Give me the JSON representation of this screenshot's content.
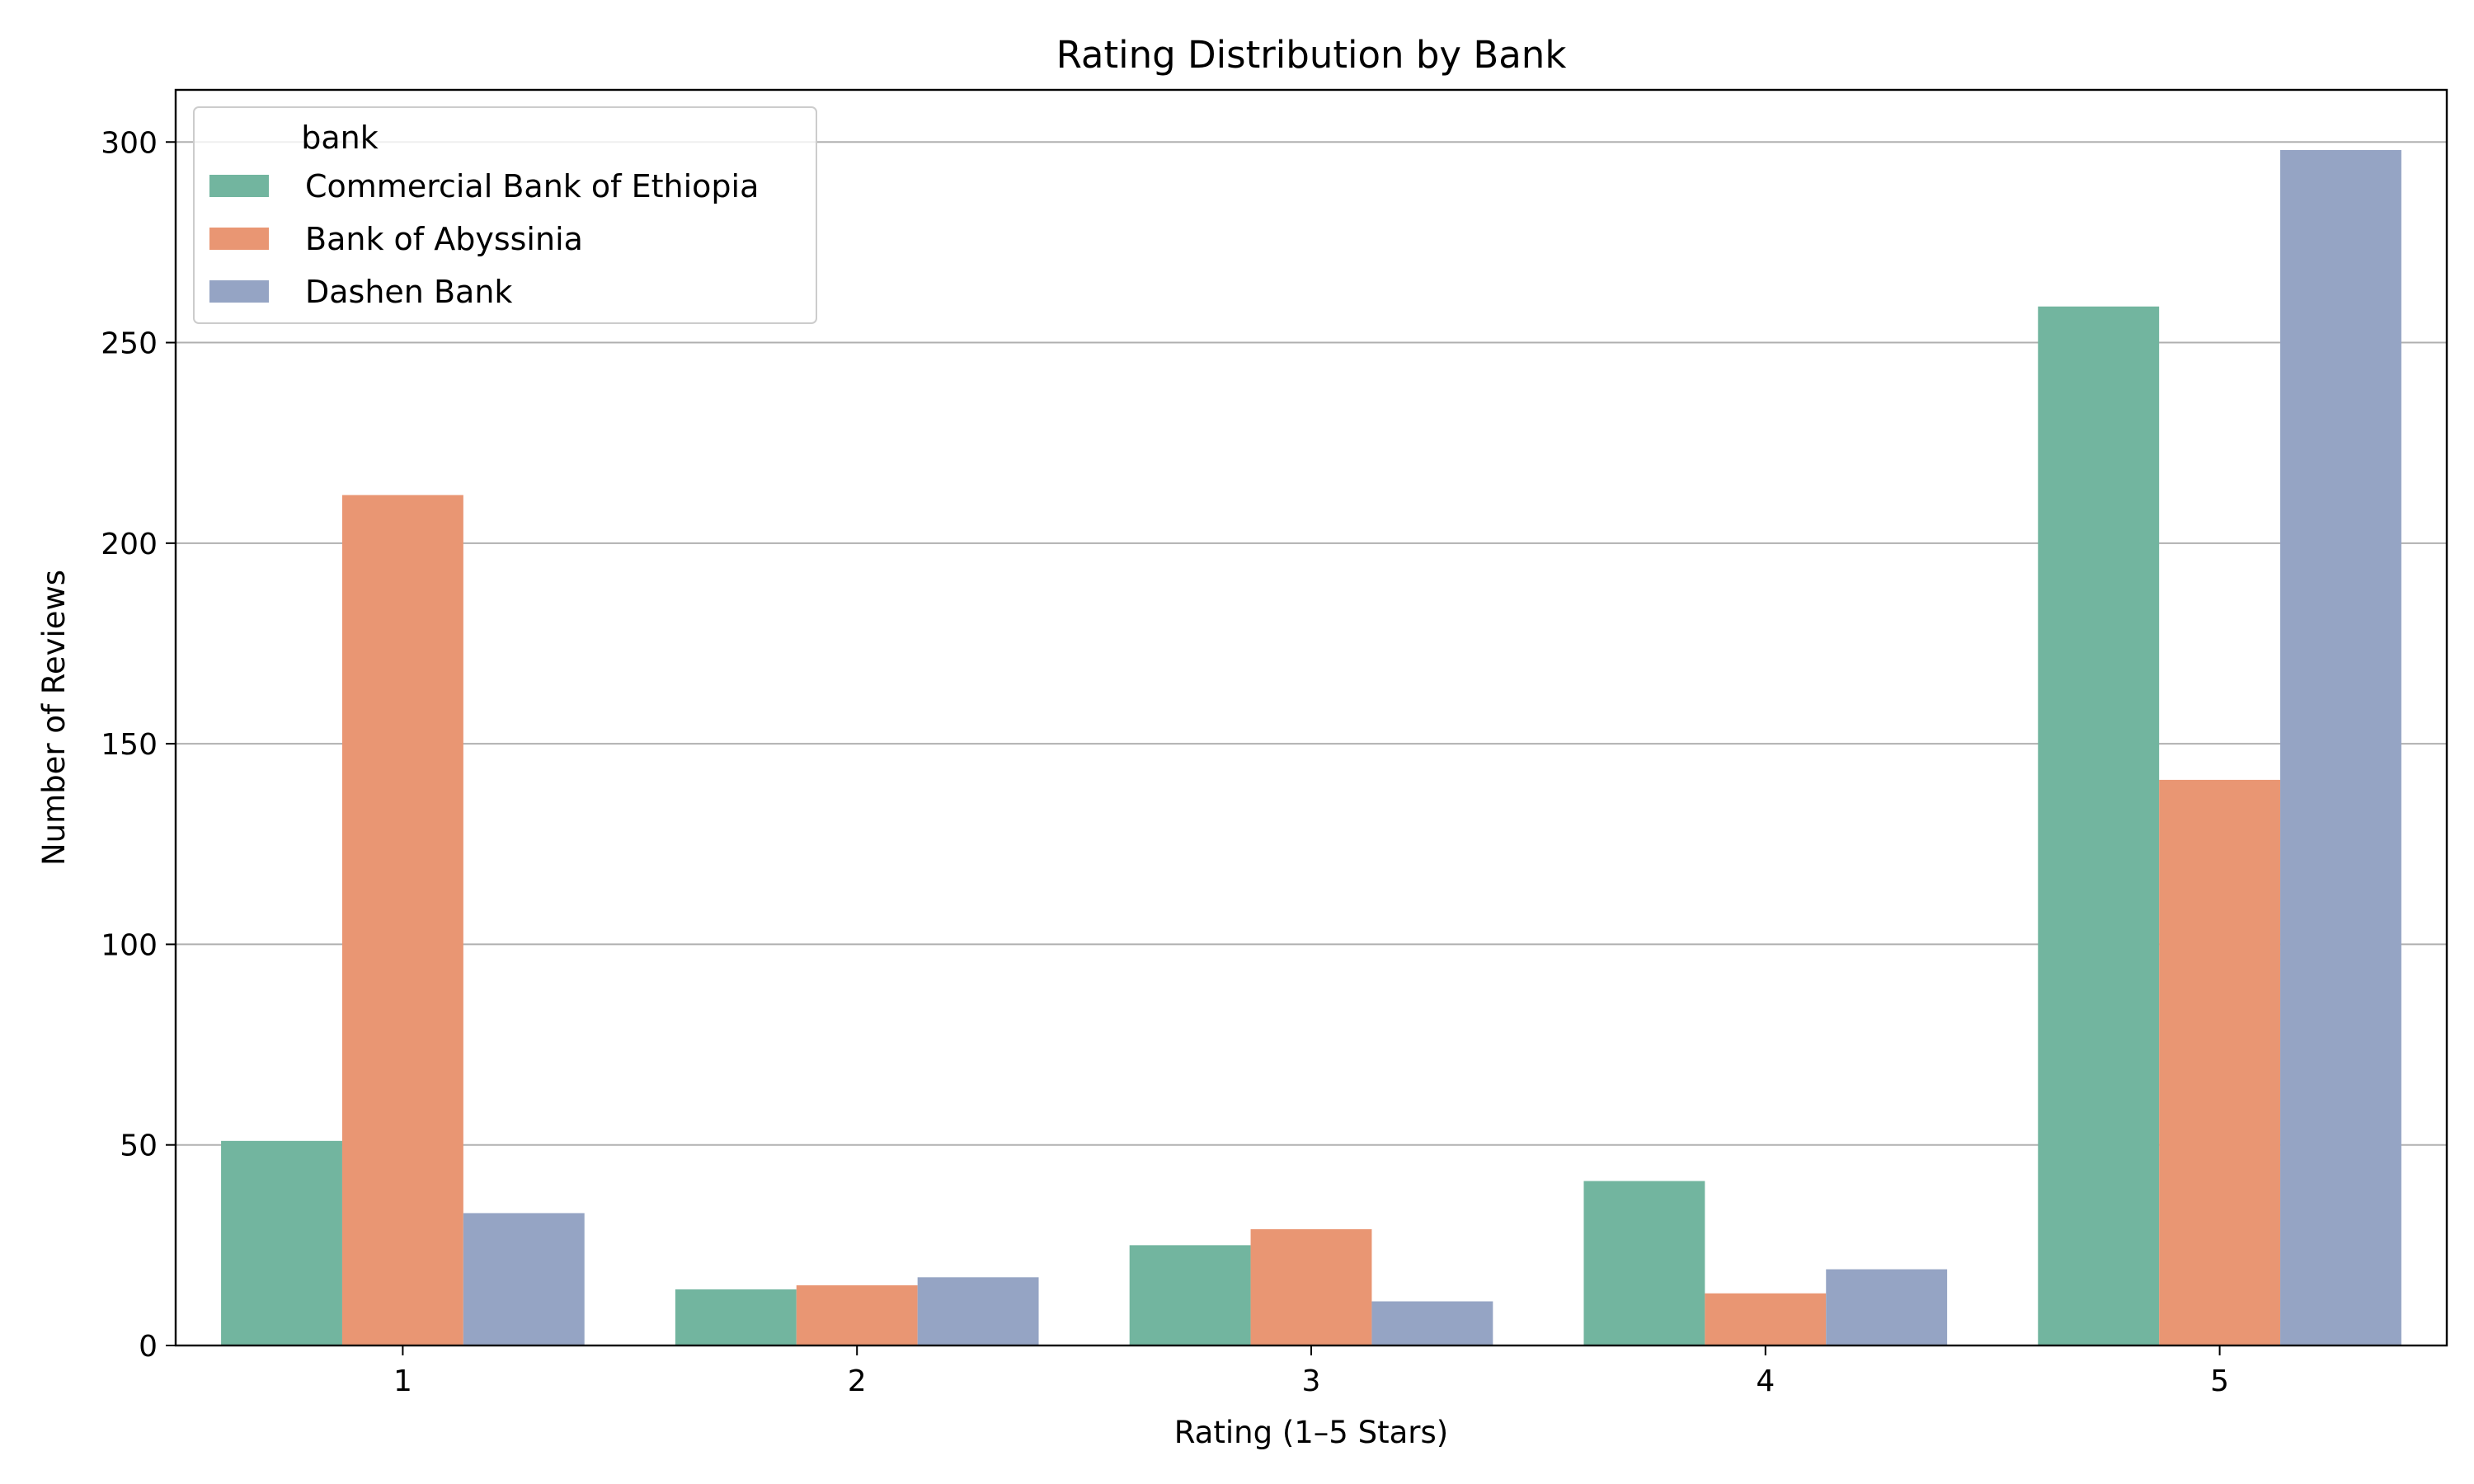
{
  "chart_data": {
    "type": "bar",
    "title": "Rating Distribution by Bank",
    "xlabel": "Rating (1–5 Stars)",
    "ylabel": "Number of Reviews",
    "categories": [
      "1",
      "2",
      "3",
      "4",
      "5"
    ],
    "ylim": [
      0,
      313
    ],
    "yticks": [
      0,
      50,
      100,
      150,
      200,
      250,
      300
    ],
    "grid": "y",
    "legend": {
      "title": "bank",
      "placement": "top-left"
    },
    "series": [
      {
        "name": "Commercial Bank of Ethiopia",
        "color": "#72b59f",
        "values": [
          51,
          14,
          25,
          41,
          259
        ]
      },
      {
        "name": "Bank of Abyssinia",
        "color": "#e99673",
        "values": [
          212,
          15,
          29,
          13,
          141
        ]
      },
      {
        "name": "Dashen Bank",
        "color": "#95a4c4",
        "values": [
          33,
          17,
          11,
          19,
          298
        ]
      }
    ]
  }
}
